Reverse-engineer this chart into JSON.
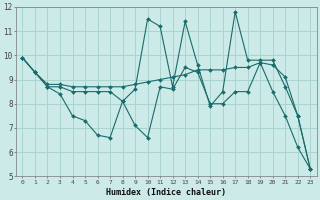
{
  "title": "",
  "xlabel": "Humidex (Indice chaleur)",
  "bg_color": "#cceae7",
  "grid_color": "#aad4d0",
  "line_color": "#1a6b6b",
  "xlim": [
    -0.5,
    23.5
  ],
  "ylim": [
    5,
    12
  ],
  "xticks": [
    0,
    1,
    2,
    3,
    4,
    5,
    6,
    7,
    8,
    9,
    10,
    11,
    12,
    13,
    14,
    15,
    16,
    17,
    18,
    19,
    20,
    21,
    22,
    23
  ],
  "yticks": [
    5,
    6,
    7,
    8,
    9,
    10,
    11,
    12
  ],
  "series": [
    [
      9.9,
      9.3,
      8.7,
      8.4,
      7.5,
      7.3,
      6.7,
      6.6,
      8.1,
      7.1,
      6.6,
      8.7,
      8.6,
      9.5,
      9.3,
      8.0,
      8.0,
      8.5,
      8.5,
      9.7,
      8.5,
      7.5,
      6.2,
      5.3
    ],
    [
      9.9,
      9.3,
      8.8,
      8.8,
      8.7,
      8.7,
      8.7,
      8.7,
      8.7,
      8.8,
      8.9,
      9.0,
      9.1,
      9.2,
      9.4,
      9.4,
      9.4,
      9.5,
      9.5,
      9.7,
      9.6,
      9.1,
      7.5,
      5.3
    ],
    [
      9.9,
      9.3,
      8.7,
      8.7,
      8.5,
      8.5,
      8.5,
      8.5,
      8.1,
      8.6,
      11.5,
      11.2,
      8.7,
      11.4,
      9.6,
      7.9,
      8.5,
      11.8,
      9.8,
      9.8,
      9.8,
      8.7,
      7.5,
      5.3
    ]
  ]
}
